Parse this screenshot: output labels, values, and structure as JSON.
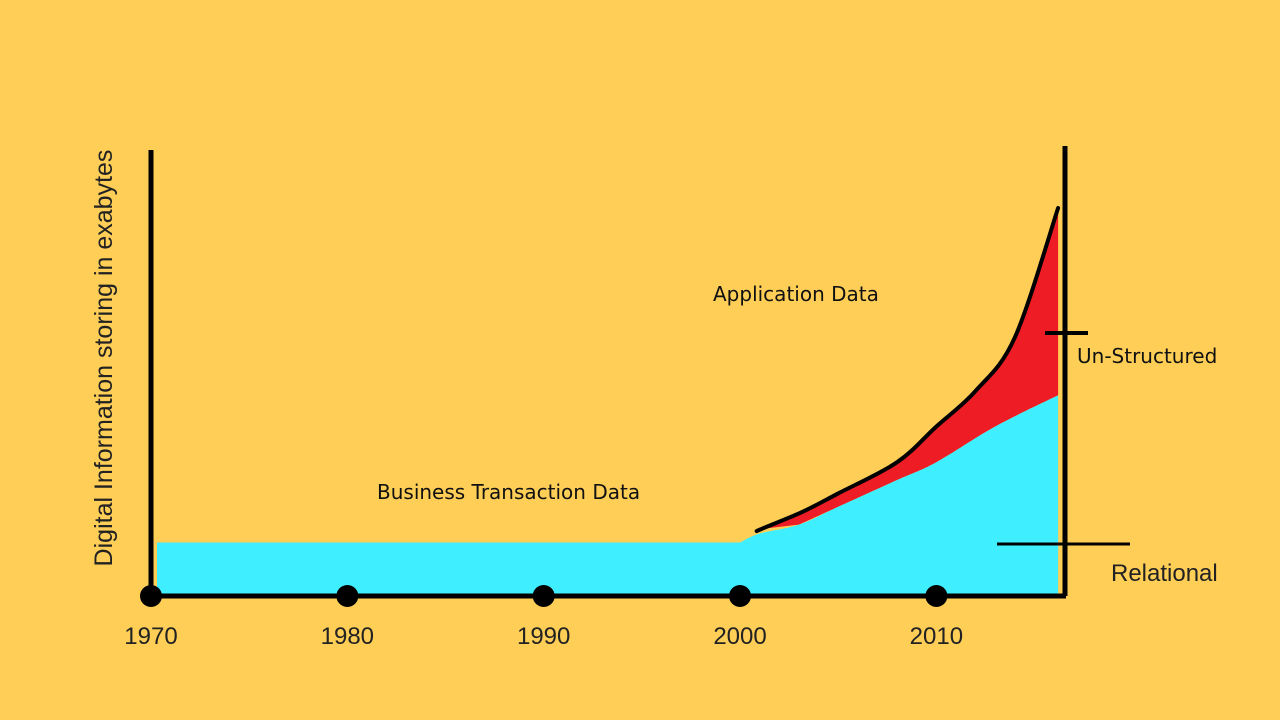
{
  "chart_data": {
    "type": "area",
    "title": "",
    "xlabel": "",
    "ylabel": "Digital Information storing in exabytes",
    "x_ticks": [
      1970,
      1980,
      1990,
      2000,
      2010
    ],
    "xlim": [
      1970,
      2016.5
    ],
    "ylim": [
      0,
      100
    ],
    "grid": false,
    "series": [
      {
        "name": "Relational",
        "color": "#40EFFF",
        "x": [
          1970,
          2000,
          2001,
          2003,
          2005,
          2008,
          2010,
          2013,
          2016.2
        ],
        "y": [
          12,
          12,
          14,
          16,
          20,
          26,
          30,
          38,
          45
        ]
      },
      {
        "name": "Un-Structured",
        "color": "#EE1C25",
        "x": [
          2001,
          2003,
          2005,
          2008,
          2010,
          2012,
          2014,
          2016.2
        ],
        "y": [
          15,
          18.5,
          23,
          30,
          38,
          46,
          58,
          87
        ]
      }
    ],
    "annotations": {
      "business": "Business Transaction Data",
      "application": "Application Data",
      "unstructured": "Un-Structured",
      "relational": "Relational"
    }
  }
}
